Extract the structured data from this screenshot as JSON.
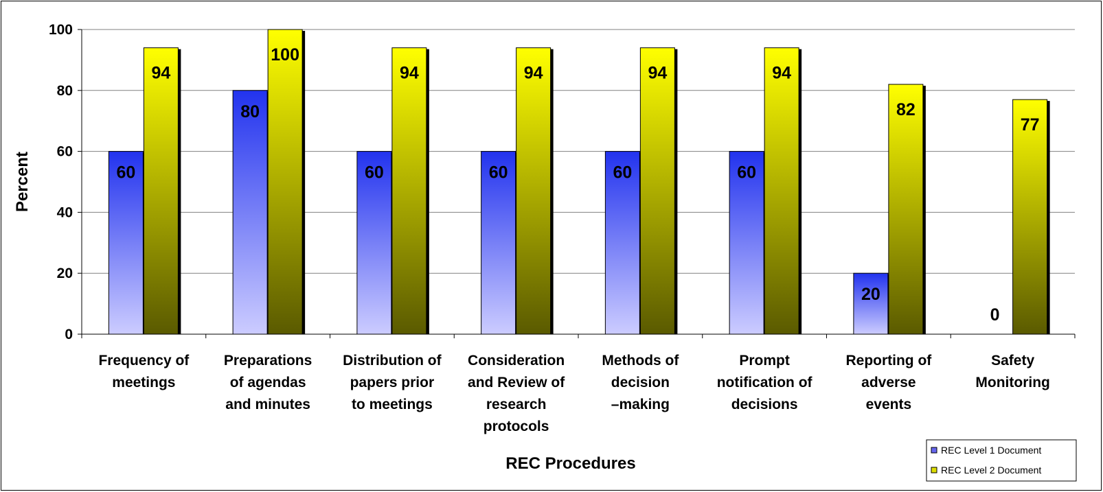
{
  "chart_data": {
    "type": "bar",
    "title": "",
    "xlabel": "REC Procedures",
    "ylabel": "Percent",
    "ylim": [
      0,
      100
    ],
    "yticks": [
      0,
      20,
      40,
      60,
      80,
      100
    ],
    "grid": true,
    "legend_position": "bottom-right",
    "categories": [
      [
        "Frequency of",
        "meetings"
      ],
      [
        "Preparations",
        "of agendas",
        "and  minutes"
      ],
      [
        "Distribution of",
        "papers prior",
        "to meetings"
      ],
      [
        "Consideration",
        "and Review of",
        "research",
        "protocols"
      ],
      [
        "Methods of",
        "decision",
        "–making"
      ],
      [
        "Prompt",
        "notification of",
        "decisions"
      ],
      [
        "Reporting of",
        "adverse",
        "events"
      ],
      [
        "Safety",
        "Monitoring"
      ]
    ],
    "series": [
      {
        "name": "REC Level 1 Document",
        "values": [
          60,
          80,
          60,
          60,
          60,
          60,
          20,
          0
        ],
        "color_top": "#2233ee",
        "color_bottom": "#ccccff"
      },
      {
        "name": "REC Level 2 Document",
        "values": [
          94,
          100,
          94,
          94,
          94,
          94,
          82,
          77
        ],
        "color_top": "#ffff00",
        "color_bottom": "#5a5a00"
      }
    ]
  }
}
